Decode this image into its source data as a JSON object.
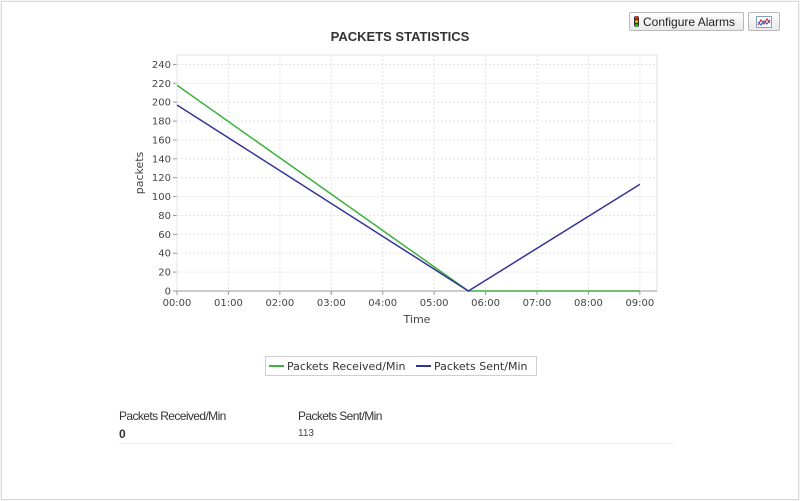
{
  "toolbar": {
    "configure_alarms_label": "Configure Alarms",
    "configure_icon": "traffic-light-icon",
    "chart_icon": "line-chart-icon"
  },
  "stats": {
    "received_label": "Packets Received/Min",
    "received_value": "0",
    "sent_label": "Packets Sent/Min",
    "sent_value": "113"
  },
  "chart_data": {
    "type": "line",
    "title": "PACKETS STATISTICS",
    "xlabel": "Time",
    "ylabel": "packets",
    "x_ticks": [
      "00:00",
      "01:00",
      "02:00",
      "03:00",
      "04:00",
      "05:00",
      "06:00",
      "07:00",
      "08:00",
      "09:00"
    ],
    "xlim": [
      "00:00",
      "09:20"
    ],
    "ylim": [
      0,
      250
    ],
    "y_ticks": [
      0,
      20,
      40,
      60,
      80,
      100,
      120,
      140,
      160,
      180,
      200,
      220,
      240
    ],
    "grid": true,
    "legend_position": "bottom-center",
    "series": [
      {
        "name": "Packets Received/Min",
        "color": "#3cb33c",
        "points": [
          {
            "x": "00:00",
            "y": 218
          },
          {
            "x": "05:40",
            "y": 0
          },
          {
            "x": "09:00",
            "y": 0
          }
        ]
      },
      {
        "name": "Packets Sent/Min",
        "color": "#333399",
        "points": [
          {
            "x": "00:00",
            "y": 197
          },
          {
            "x": "05:40",
            "y": 0
          },
          {
            "x": "09:00",
            "y": 113
          }
        ]
      }
    ]
  }
}
